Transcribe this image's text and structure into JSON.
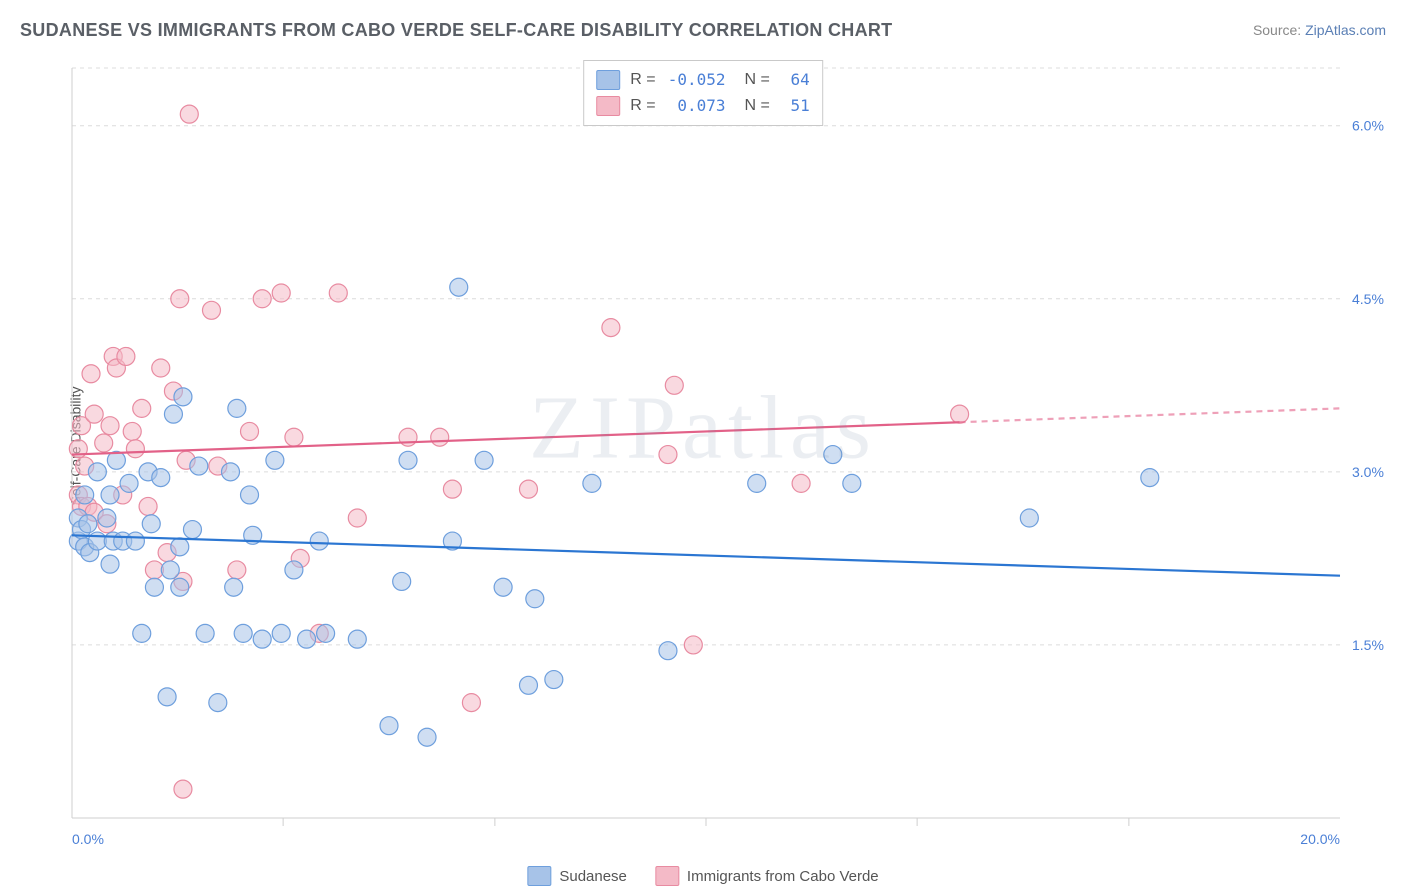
{
  "title": "SUDANESE VS IMMIGRANTS FROM CABO VERDE SELF-CARE DISABILITY CORRELATION CHART",
  "source_prefix": "Source: ",
  "source_link": "ZipAtlas.com",
  "ylabel": "Self-Care Disability",
  "watermark": "ZIPatlas",
  "chart": {
    "type": "scatter",
    "background_color": "#ffffff",
    "grid_color": "#dcdcdc",
    "axis_color": "#cfcfcf",
    "xlim": [
      0,
      20
    ],
    "ylim": [
      0,
      6.5
    ],
    "xtick_labels": [
      "0.0%",
      "20.0%"
    ],
    "xtick_positions": [
      0,
      20
    ],
    "xminor_ticks": [
      3.33,
      6.67,
      10.0,
      13.33,
      16.67
    ],
    "ytick_labels": [
      "1.5%",
      "3.0%",
      "4.5%",
      "6.0%"
    ],
    "ytick_positions": [
      1.5,
      3.0,
      4.5,
      6.0
    ],
    "marker_radius": 9,
    "marker_opacity": 0.55,
    "line_width": 2.2
  },
  "series": [
    {
      "name": "Sudanese",
      "color_fill": "#a7c3e8",
      "color_stroke": "#6e9fdd",
      "trend_color": "#2b76d2",
      "R": "-0.052",
      "N": "64",
      "trend": {
        "x1": 0,
        "y1": 2.45,
        "x2": 20,
        "y2": 2.1,
        "dash_from": 20
      },
      "points": [
        [
          0.1,
          2.4
        ],
        [
          0.1,
          2.6
        ],
        [
          0.15,
          2.5
        ],
        [
          0.2,
          2.8
        ],
        [
          0.2,
          2.35
        ],
        [
          0.25,
          2.55
        ],
        [
          0.28,
          2.3
        ],
        [
          0.4,
          2.4
        ],
        [
          0.4,
          3.0
        ],
        [
          0.55,
          2.6
        ],
        [
          0.6,
          2.2
        ],
        [
          0.6,
          2.8
        ],
        [
          0.65,
          2.4
        ],
        [
          0.7,
          3.1
        ],
        [
          0.8,
          2.4
        ],
        [
          0.9,
          2.9
        ],
        [
          1.0,
          2.4
        ],
        [
          1.1,
          1.6
        ],
        [
          1.2,
          3.0
        ],
        [
          1.25,
          2.55
        ],
        [
          1.3,
          2.0
        ],
        [
          1.4,
          2.95
        ],
        [
          1.5,
          1.05
        ],
        [
          1.55,
          2.15
        ],
        [
          1.6,
          3.5
        ],
        [
          1.7,
          2.0
        ],
        [
          1.7,
          2.35
        ],
        [
          1.75,
          3.65
        ],
        [
          1.9,
          2.5
        ],
        [
          2.0,
          3.05
        ],
        [
          2.1,
          1.6
        ],
        [
          2.3,
          1.0
        ],
        [
          2.5,
          3.0
        ],
        [
          2.55,
          2.0
        ],
        [
          2.6,
          3.55
        ],
        [
          2.7,
          1.6
        ],
        [
          2.8,
          2.8
        ],
        [
          2.85,
          2.45
        ],
        [
          3.0,
          1.55
        ],
        [
          3.2,
          3.1
        ],
        [
          3.3,
          1.6
        ],
        [
          3.5,
          2.15
        ],
        [
          3.7,
          1.55
        ],
        [
          3.9,
          2.4
        ],
        [
          4.0,
          1.6
        ],
        [
          4.5,
          1.55
        ],
        [
          5.0,
          0.8
        ],
        [
          5.2,
          2.05
        ],
        [
          5.3,
          3.1
        ],
        [
          5.6,
          0.7
        ],
        [
          6.0,
          2.4
        ],
        [
          6.1,
          4.6
        ],
        [
          6.5,
          3.1
        ],
        [
          6.8,
          2.0
        ],
        [
          7.2,
          1.15
        ],
        [
          7.3,
          1.9
        ],
        [
          7.6,
          1.2
        ],
        [
          8.2,
          2.9
        ],
        [
          9.4,
          1.45
        ],
        [
          10.8,
          2.9
        ],
        [
          12.0,
          3.15
        ],
        [
          12.3,
          2.9
        ],
        [
          15.1,
          2.6
        ],
        [
          17.0,
          2.95
        ]
      ]
    },
    {
      "name": "Immigrants from Cabo Verde",
      "color_fill": "#f4bac7",
      "color_stroke": "#e88ba1",
      "trend_color": "#e26188",
      "R": "0.073",
      "N": "51",
      "trend": {
        "x1": 0,
        "y1": 3.15,
        "x2": 20,
        "y2": 3.55,
        "dash_from": 14
      },
      "points": [
        [
          0.1,
          2.8
        ],
        [
          0.1,
          3.2
        ],
        [
          0.15,
          2.7
        ],
        [
          0.15,
          3.4
        ],
        [
          0.2,
          3.05
        ],
        [
          0.25,
          2.7
        ],
        [
          0.3,
          3.85
        ],
        [
          0.35,
          3.5
        ],
        [
          0.35,
          2.65
        ],
        [
          0.5,
          3.25
        ],
        [
          0.55,
          2.55
        ],
        [
          0.6,
          3.4
        ],
        [
          0.65,
          4.0
        ],
        [
          0.7,
          3.9
        ],
        [
          0.8,
          2.8
        ],
        [
          0.85,
          4.0
        ],
        [
          0.95,
          3.35
        ],
        [
          1.0,
          3.2
        ],
        [
          1.1,
          3.55
        ],
        [
          1.2,
          2.7
        ],
        [
          1.3,
          2.15
        ],
        [
          1.4,
          3.9
        ],
        [
          1.5,
          2.3
        ],
        [
          1.6,
          3.7
        ],
        [
          1.7,
          4.5
        ],
        [
          1.75,
          2.05
        ],
        [
          1.75,
          0.25
        ],
        [
          1.8,
          3.1
        ],
        [
          1.85,
          6.1
        ],
        [
          2.2,
          4.4
        ],
        [
          2.3,
          3.05
        ],
        [
          2.6,
          2.15
        ],
        [
          2.8,
          3.35
        ],
        [
          3.0,
          4.5
        ],
        [
          3.3,
          4.55
        ],
        [
          3.5,
          3.3
        ],
        [
          3.6,
          2.25
        ],
        [
          3.9,
          1.6
        ],
        [
          4.2,
          4.55
        ],
        [
          4.5,
          2.6
        ],
        [
          5.3,
          3.3
        ],
        [
          5.8,
          3.3
        ],
        [
          6.0,
          2.85
        ],
        [
          6.3,
          1.0
        ],
        [
          7.2,
          2.85
        ],
        [
          8.5,
          4.25
        ],
        [
          9.4,
          3.15
        ],
        [
          9.5,
          3.75
        ],
        [
          9.8,
          1.5
        ],
        [
          11.5,
          2.9
        ],
        [
          14.0,
          3.5
        ]
      ]
    }
  ],
  "legend": {
    "items": [
      "Sudanese",
      "Immigrants from Cabo Verde"
    ]
  }
}
